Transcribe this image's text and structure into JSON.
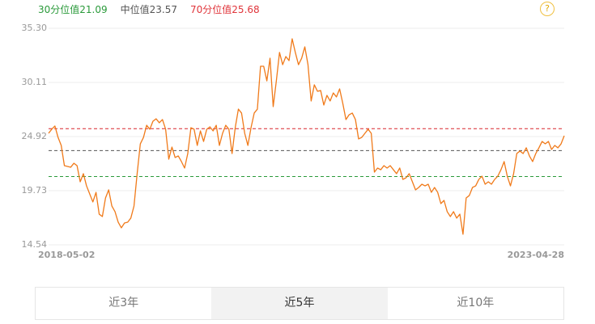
{
  "chart_data": {
    "type": "line",
    "reference_lines": [
      {
        "name": "30分位值",
        "value": 21.09,
        "color": "#2a9a3a",
        "text_color": "#2a9a3a"
      },
      {
        "name": "中位值",
        "value": 23.57,
        "color": "#555555",
        "text_color": "#555555"
      },
      {
        "name": "70分位值",
        "value": 25.68,
        "color": "#d9262c",
        "text_color": "#e0353b"
      }
    ],
    "color": "#f07a1a",
    "ylim": [
      14.54,
      35.3
    ],
    "yticks": [
      14.54,
      19.73,
      24.92,
      30.11,
      {
        "value": 35.3,
        "label": "35.30"
      }
    ],
    "grid": true,
    "categories": [
      "2018-05-02",
      null,
      null,
      null,
      null,
      null,
      null,
      null,
      null,
      null,
      null,
      null,
      null,
      null,
      null,
      null,
      null,
      null,
      null,
      null,
      null,
      null,
      null,
      null,
      null,
      null,
      null,
      null,
      null,
      null,
      null,
      null,
      null,
      null,
      null,
      null,
      null,
      null,
      null,
      null,
      null,
      null,
      null,
      null,
      null,
      null,
      null,
      null,
      null,
      null,
      null,
      null,
      null,
      null,
      null,
      null,
      null,
      null,
      null,
      null,
      null,
      null,
      null,
      null,
      null,
      null,
      null,
      null,
      null,
      null,
      null,
      null,
      null,
      null,
      null,
      null,
      null,
      null,
      null,
      null,
      null,
      null,
      null,
      null,
      null,
      null,
      null,
      null,
      null,
      null,
      null,
      null,
      null,
      null,
      null,
      null,
      null,
      null,
      null,
      null,
      null,
      null,
      null,
      null,
      null,
      null,
      null,
      null,
      null,
      null,
      null,
      null,
      null,
      null,
      null,
      null,
      null,
      null,
      null,
      null,
      null,
      null,
      null,
      null,
      null,
      null,
      null,
      null,
      null,
      null,
      null,
      null,
      null,
      null,
      null,
      null,
      null,
      null,
      null,
      null,
      null,
      null,
      null,
      null,
      null,
      null,
      null,
      null,
      null,
      null,
      null,
      null,
      null,
      null,
      null,
      null,
      null,
      null,
      null,
      null,
      null,
      null,
      null,
      "2023-04-28"
    ],
    "values": [
      25.23,
      25.62,
      25.93,
      24.84,
      24.07,
      22.13,
      22.05,
      21.98,
      22.36,
      22.13,
      20.58,
      21.36,
      20.19,
      19.42,
      18.65,
      19.57,
      17.48,
      17.25,
      19.03,
      19.81,
      18.26,
      17.72,
      16.71,
      16.17,
      16.63,
      16.71,
      17.1,
      18.26,
      21.36,
      24.22,
      24.84,
      26.0,
      25.62,
      26.39,
      26.62,
      26.24,
      26.55,
      25.62,
      22.75,
      23.91,
      22.91,
      23.06,
      22.52,
      21.9,
      23.29,
      25.77,
      25.62,
      24.07,
      25.46,
      24.45,
      25.62,
      25.85,
      25.46,
      26.0,
      24.07,
      25.23,
      26.0,
      25.62,
      23.29,
      25.77,
      27.55,
      27.17,
      25.23,
      24.07,
      25.77,
      27.17,
      27.55,
      31.66,
      31.66,
      30.26,
      32.43,
      27.79,
      30.26,
      32.98,
      31.81,
      32.59,
      32.2,
      34.29,
      32.98,
      31.81,
      32.43,
      33.52,
      31.81,
      28.33,
      29.88,
      29.26,
      29.33,
      27.94,
      28.87,
      28.33,
      29.1,
      28.72,
      29.49,
      28.1,
      26.55,
      27.01,
      27.17,
      26.55,
      24.69,
      24.84,
      25.23,
      25.62,
      25.23,
      21.51,
      21.9,
      21.74,
      22.13,
      21.9,
      22.13,
      21.74,
      21.36,
      21.9,
      20.81,
      20.97,
      21.36,
      20.58,
      19.81,
      20.04,
      20.35,
      20.19,
      20.35,
      19.57,
      20.04,
      19.57,
      18.49,
      18.8,
      17.72,
      17.25,
      17.72,
      17.1,
      17.48,
      15.55,
      19.03,
      19.27,
      20.04,
      20.19,
      20.81,
      21.12,
      20.35,
      20.58,
      20.35,
      20.81,
      21.12,
      21.74,
      22.52,
      21.12,
      20.19,
      21.36,
      23.29,
      23.53,
      23.29,
      23.84,
      23.06,
      22.52,
      23.29,
      23.84,
      24.45,
      24.22,
      24.45,
      23.68,
      24.07,
      23.84,
      24.22,
      25.0
    ],
    "tabs": [
      "近3年",
      "近5年",
      "近10年"
    ],
    "active_tab": 1
  }
}
